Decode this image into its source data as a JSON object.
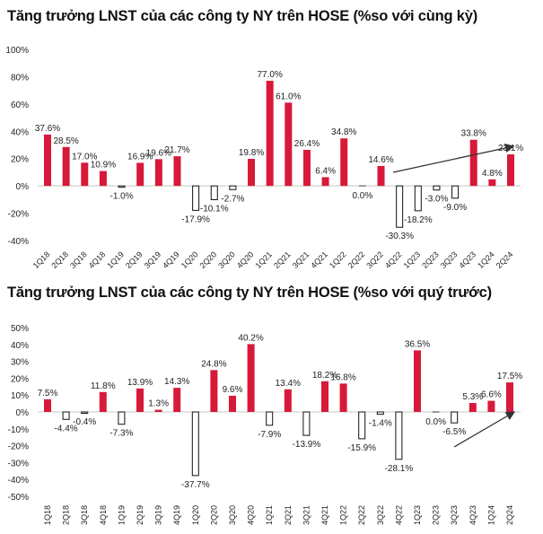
{
  "colors": {
    "positive": "#d7193a",
    "negative_fill": "#ffffff",
    "negative_stroke": "#111111",
    "zero_line": "#c8c8c8",
    "arrow": "#333333"
  },
  "chart_data": [
    {
      "type": "bar",
      "title": "Tăng trưởng LNST của các công ty NY trên HOSE (%so với cùng kỳ)",
      "categories": [
        "1Q18",
        "2Q18",
        "3Q18",
        "4Q18",
        "1Q19",
        "2Q19",
        "3Q19",
        "4Q19",
        "1Q20",
        "2Q20",
        "3Q20",
        "4Q20",
        "1Q21",
        "2Q21",
        "3Q21",
        "4Q21",
        "1Q22",
        "2Q22",
        "3Q22",
        "4Q22",
        "1Q23",
        "2Q23",
        "3Q23",
        "4Q23",
        "1Q24",
        "2Q24"
      ],
      "values": [
        37.6,
        28.5,
        17.0,
        10.9,
        -1.0,
        16.9,
        19.6,
        21.7,
        -17.9,
        -10.1,
        -2.7,
        19.8,
        77.0,
        61.0,
        26.4,
        6.4,
        34.8,
        0.0,
        14.6,
        -30.3,
        -18.2,
        -3.0,
        -9.0,
        33.8,
        4.8,
        23.1
      ],
      "ylim": [
        -40,
        100
      ],
      "yticks": [
        "100%",
        "80%",
        "60%",
        "40%",
        "20%",
        "0%",
        "-20%",
        "-40%"
      ],
      "ytick_values": [
        100,
        80,
        60,
        40,
        20,
        0,
        -20,
        -40
      ],
      "xlabel": "",
      "ylabel": "",
      "grid": false,
      "data_labels": true,
      "trend_arrow": "rising, from 4Q22 to 2Q24",
      "x_label_rotation": 45
    },
    {
      "type": "bar",
      "title": "Tăng trưởng LNST của các công ty NY trên HOSE (%so với quý trước)",
      "categories": [
        "1Q18",
        "2Q18",
        "3Q18",
        "4Q18",
        "1Q19",
        "2Q19",
        "3Q19",
        "4Q19",
        "1Q20",
        "2Q20",
        "3Q20",
        "4Q20",
        "1Q21",
        "2Q21",
        "3Q21",
        "4Q21",
        "1Q22",
        "2Q22",
        "3Q22",
        "4Q22",
        "1Q23",
        "2Q23",
        "3Q23",
        "4Q23",
        "1Q24",
        "2Q24"
      ],
      "values": [
        7.5,
        -4.4,
        -0.4,
        11.8,
        -7.3,
        13.9,
        1.3,
        14.3,
        -37.7,
        24.8,
        9.6,
        40.2,
        -7.9,
        13.4,
        -13.9,
        18.2,
        16.8,
        -15.9,
        -1.4,
        -28.1,
        36.5,
        0.0,
        -6.5,
        5.3,
        6.6,
        17.5
      ],
      "ylim": [
        -50,
        50
      ],
      "yticks": [
        "50%",
        "40%",
        "30%",
        "20%",
        "10%",
        "0%",
        "-10%",
        "-20%",
        "-30%",
        "-40%",
        "-50%"
      ],
      "ytick_values": [
        50,
        40,
        30,
        20,
        10,
        0,
        -10,
        -20,
        -30,
        -40,
        -50
      ],
      "xlabel": "",
      "ylabel": "",
      "grid": false,
      "data_labels": true,
      "trend_arrow": "rising, from 3Q23 to 2Q24",
      "x_label_rotation": 90
    }
  ]
}
